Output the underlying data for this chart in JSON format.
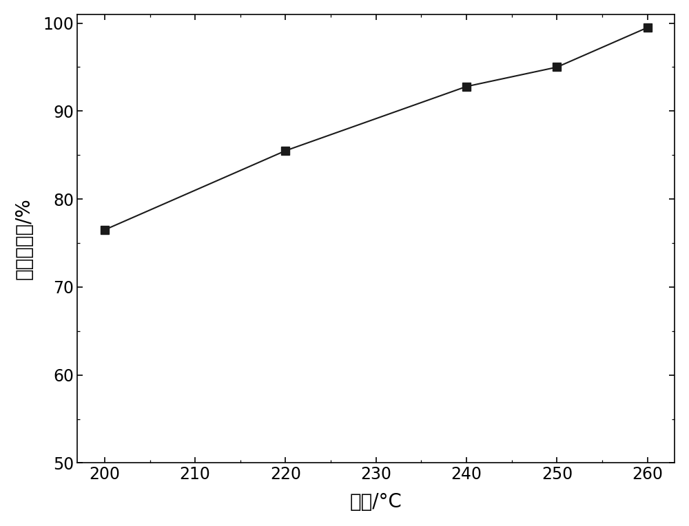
{
  "x": [
    200,
    220,
    240,
    250,
    260
  ],
  "y": [
    76.5,
    85.5,
    92.8,
    95.0,
    99.5
  ],
  "xlabel": "温度/°C",
  "ylabel": "甲醒转化率/%",
  "xlim": [
    197,
    263
  ],
  "ylim": [
    50,
    101
  ],
  "xticks": [
    200,
    210,
    220,
    230,
    240,
    250,
    260
  ],
  "yticks": [
    50,
    60,
    70,
    80,
    90,
    100
  ],
  "line_color": "#1a1a1a",
  "marker_color": "#1a1a1a",
  "marker": "s",
  "marker_size": 8,
  "line_width": 1.5,
  "background_color": "#ffffff",
  "xlabel_fontsize": 20,
  "ylabel_fontsize": 20,
  "tick_fontsize": 17
}
